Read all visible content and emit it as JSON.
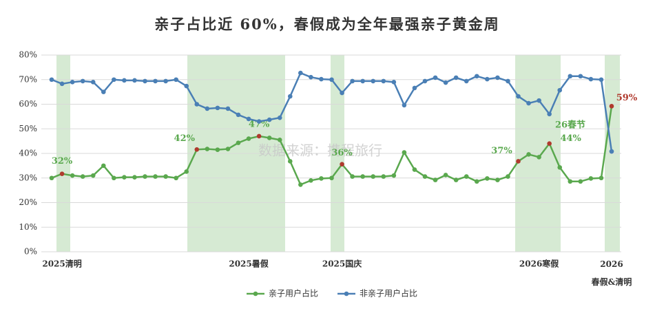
{
  "chart_data": {
    "type": "line",
    "title": "亲子占比近 60%，春假成为全年最强亲子黄金周",
    "watermark": "数据来源：携程旅行",
    "categories": [
      null,
      "2025清明",
      null,
      null,
      null,
      null,
      null,
      null,
      null,
      null,
      null,
      null,
      null,
      null,
      null,
      null,
      null,
      null,
      null,
      "2025暑假",
      null,
      null,
      null,
      null,
      null,
      null,
      null,
      null,
      "2025国庆",
      null,
      null,
      null,
      null,
      null,
      null,
      null,
      null,
      null,
      null,
      null,
      null,
      null,
      null,
      null,
      null,
      null,
      null,
      "2026寒假",
      null,
      null,
      null,
      null,
      null,
      null,
      "2026\n春假&清明"
    ],
    "series": [
      {
        "name": "亲子用户占比",
        "color": "#5aa84e",
        "values": [
          30,
          31.7,
          31,
          30.6,
          31,
          35,
          30,
          30.3,
          30.3,
          30.6,
          30.6,
          30.6,
          30,
          32.6,
          41.6,
          41.8,
          41.5,
          41.8,
          44.3,
          46,
          47,
          46.3,
          45.5,
          36.8,
          27.3,
          29,
          29.8,
          30,
          35.6,
          30.6,
          30.6,
          30.6,
          30.6,
          31,
          40.4,
          33.4,
          30.6,
          29.2,
          31.2,
          29.2,
          30.6,
          28.6,
          29.8,
          29.2,
          30.6,
          36.8,
          39.6,
          38.5,
          44,
          34.3,
          28.6,
          28.6,
          29.8,
          30,
          59.2
        ],
        "value_labels": [
          null,
          "32%",
          null,
          null,
          null,
          null,
          null,
          null,
          null,
          null,
          null,
          null,
          null,
          null,
          "42%",
          null,
          null,
          null,
          null,
          null,
          "47%",
          null,
          null,
          null,
          null,
          null,
          null,
          null,
          "36%",
          null,
          null,
          null,
          null,
          null,
          null,
          null,
          null,
          null,
          null,
          null,
          null,
          null,
          null,
          null,
          null,
          "37%",
          null,
          null,
          "44%",
          null,
          null,
          null,
          null,
          null,
          "59%"
        ]
      },
      {
        "name": "非亲子用户占比",
        "color": "#4a7fb5",
        "values": [
          70,
          68.3,
          69,
          69.4,
          69,
          65,
          70,
          69.7,
          69.7,
          69.4,
          69.4,
          69.4,
          70,
          67.4,
          60,
          58.2,
          58.5,
          58.2,
          55.7,
          54,
          53,
          53.7,
          54.5,
          63.2,
          72.7,
          71,
          70.2,
          70,
          64.6,
          69.4,
          69.4,
          69.4,
          69.4,
          69,
          59.6,
          66.6,
          69.4,
          70.8,
          68.8,
          70.8,
          69.4,
          71.4,
          70.2,
          70.8,
          69.4,
          63.2,
          60.4,
          61.5,
          56,
          65.7,
          71.4,
          71.4,
          70.2,
          70,
          40.8
        ]
      }
    ],
    "highlight_color": "#b03a2e",
    "annotations": [
      {
        "text": "26春节",
        "color": "#5aa84e"
      }
    ],
    "ylim": [
      0,
      80
    ],
    "yticks": [
      {
        "value": 0,
        "label": "0%"
      },
      {
        "value": 10,
        "label": "10%"
      },
      {
        "value": 20,
        "label": "20%"
      },
      {
        "value": 30,
        "label": "30%"
      },
      {
        "value": 40,
        "label": "40%"
      },
      {
        "value": 50,
        "label": "50%"
      },
      {
        "value": 60,
        "label": "60%"
      },
      {
        "value": 70,
        "label": "70%"
      },
      {
        "value": 80,
        "label": "80%"
      }
    ],
    "grid": true
  }
}
